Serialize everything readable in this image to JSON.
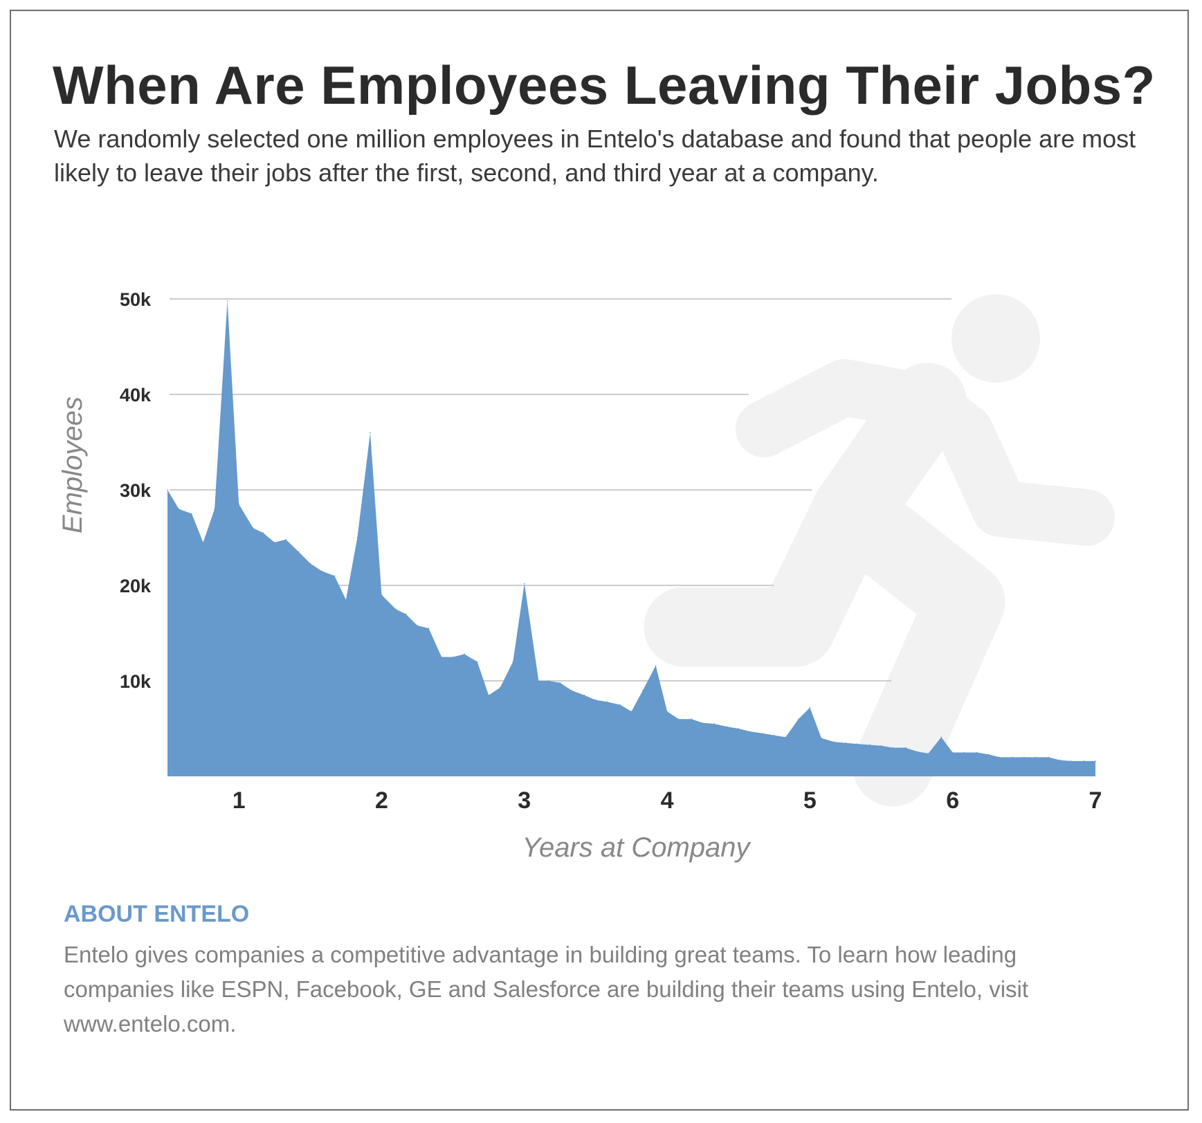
{
  "header": {
    "title": "When Are Employees Leaving Their Jobs?",
    "subtitle": "We randomly selected one million employees in Entelo's database and found that people are most likely to leave their jobs after the first, second, and third year at a company."
  },
  "about": {
    "heading": "ABOUT ENTELO",
    "body": "Entelo gives companies a competitive advantage in building great teams. To learn how leading companies like ESPN, Facebook, GE and Salesforce are building their teams using Entelo, visit www.entelo.com."
  },
  "icons": {
    "background": "running-person-icon"
  },
  "colors": {
    "area": "#6699cc",
    "gridline": "#cccccc",
    "icon": "#f2f2f2",
    "accent": "#6a99cc",
    "text": "#2b2b2b"
  },
  "chart_data": {
    "type": "area",
    "title": "",
    "xlabel": "Years at Company",
    "ylabel": "Employees",
    "xlim": [
      0.5,
      7
    ],
    "ylim": [
      0,
      50000
    ],
    "x_ticks": [
      1,
      2,
      3,
      4,
      5,
      6,
      7
    ],
    "x_tick_labels": [
      "1",
      "2",
      "3",
      "4",
      "5",
      "6",
      "7"
    ],
    "y_ticks": [
      10000,
      20000,
      30000,
      40000,
      50000
    ],
    "y_tick_labels": [
      "10k",
      "20k",
      "30k",
      "40k",
      "50k"
    ],
    "grid": true,
    "legend": "none",
    "x": [
      0.5,
      0.58,
      0.67,
      0.75,
      0.83,
      0.92,
      1.0,
      1.1,
      1.17,
      1.25,
      1.33,
      1.42,
      1.5,
      1.58,
      1.67,
      1.75,
      1.83,
      1.92,
      2.0,
      2.1,
      2.17,
      2.25,
      2.33,
      2.42,
      2.5,
      2.58,
      2.67,
      2.75,
      2.83,
      2.92,
      3.0,
      3.1,
      3.17,
      3.25,
      3.33,
      3.42,
      3.5,
      3.58,
      3.67,
      3.75,
      3.83,
      3.92,
      4.0,
      4.08,
      4.17,
      4.25,
      4.33,
      4.42,
      4.5,
      4.58,
      4.67,
      4.75,
      4.83,
      4.92,
      5.0,
      5.08,
      5.17,
      5.25,
      5.33,
      5.42,
      5.5,
      5.58,
      5.67,
      5.75,
      5.83,
      5.92,
      6.0,
      6.08,
      6.17,
      6.25,
      6.33,
      6.42,
      6.5,
      6.58,
      6.67,
      6.75,
      6.83,
      6.92,
      7.0
    ],
    "values": [
      30000,
      28000,
      27500,
      24500,
      28000,
      49800,
      28500,
      26000,
      25500,
      24500,
      24800,
      23500,
      22300,
      21500,
      21000,
      18500,
      25000,
      36000,
      19000,
      17500,
      17000,
      15800,
      15500,
      12500,
      12500,
      12800,
      12000,
      8500,
      9300,
      12000,
      20200,
      10000,
      10000,
      9800,
      9000,
      8500,
      8000,
      7800,
      7500,
      6800,
      9000,
      11600,
      6800,
      6000,
      6000,
      5600,
      5500,
      5200,
      5000,
      4700,
      4500,
      4300,
      4100,
      6000,
      7200,
      4000,
      3600,
      3500,
      3400,
      3300,
      3200,
      3000,
      3000,
      2600,
      2400,
      4100,
      2500,
      2500,
      2500,
      2300,
      2000,
      2000,
      2000,
      2000,
      2000,
      1700,
      1600,
      1600,
      1600
    ]
  }
}
